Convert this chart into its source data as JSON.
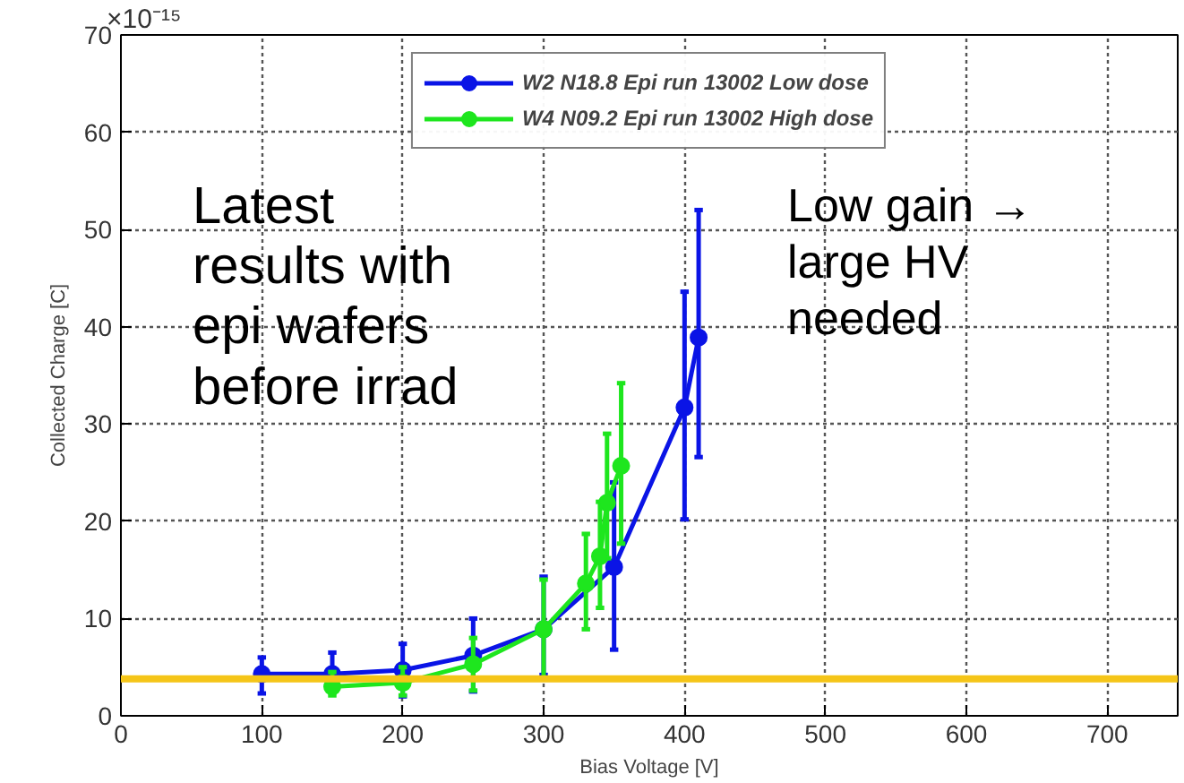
{
  "chart_data": {
    "type": "line",
    "xlabel": "Bias Voltage [V]",
    "ylabel": "Collected Charge [C]",
    "xlim": [
      0,
      750
    ],
    "ylim": [
      0,
      70
    ],
    "xticks": [
      0,
      100,
      200,
      300,
      400,
      500,
      600,
      700
    ],
    "yticks": [
      0,
      10,
      20,
      30,
      40,
      50,
      60,
      70
    ],
    "grid": true,
    "legend": "top",
    "marker": "circle",
    "line_style": "solid",
    "series": [
      {
        "name": "W2 N18.8 Epi run 13002 Low dose",
        "color": "#0a14e6",
        "x": [
          100,
          150,
          200,
          250,
          300,
          350,
          400,
          410
        ],
        "values": [
          4.3,
          4.3,
          4.7,
          6.2,
          8.9,
          15.3,
          31.7,
          38.9
        ],
        "errors": [
          [
            2.3,
            6.0
          ],
          [
            2.5,
            6.5
          ],
          [
            2.0,
            7.4
          ],
          [
            2.5,
            10.0
          ],
          [
            4.2,
            14.3
          ],
          [
            6.8,
            24.0
          ],
          [
            20.2,
            43.6
          ],
          [
            26.6,
            52.0
          ]
        ]
      },
      {
        "name": "W4 N09.2 Epi run 13002 High dose",
        "color": "#1ee61e",
        "x": [
          150,
          200,
          250,
          300,
          330,
          340,
          345,
          355
        ],
        "values": [
          3.0,
          3.4,
          5.3,
          8.9,
          13.6,
          16.4,
          21.9,
          25.7
        ],
        "errors": [
          [
            2.1,
            4.5
          ],
          [
            2.1,
            5.0
          ],
          [
            2.6,
            8.0
          ],
          [
            3.8,
            14.0
          ],
          [
            8.9,
            18.7
          ],
          [
            11.1,
            22.0
          ],
          [
            16.2,
            29.0
          ],
          [
            17.7,
            34.2
          ]
        ]
      }
    ],
    "ref_lines": [
      {
        "axis": "y",
        "value": 3.8,
        "label": null,
        "color": "#f5c518",
        "line_style": "solid"
      }
    ],
    "annotations": [
      "×10⁻¹⁵",
      "Latest results with epi wafers before irrad",
      "Low gain → large HV needed"
    ]
  }
}
